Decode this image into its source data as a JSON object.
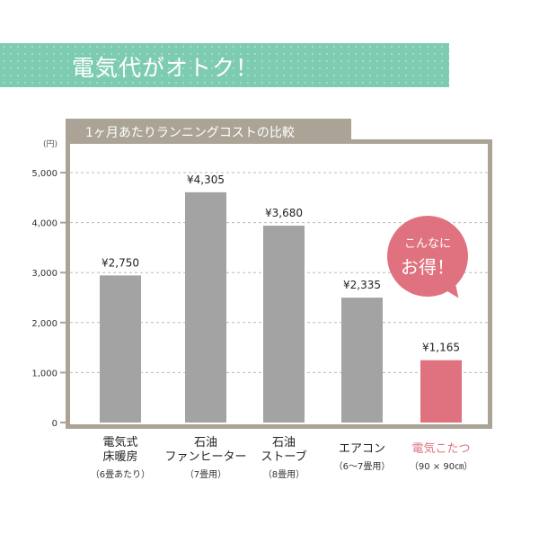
{
  "banner": {
    "title": "電気代がオトク！"
  },
  "callout": {
    "line1": "こんなに",
    "line2": "お得！"
  },
  "colors": {
    "banner": "#7dcbb0",
    "frame": "#aba496",
    "bar": "#a3a3a3",
    "highlight": "#e0727f"
  },
  "chart_data": {
    "type": "bar",
    "title": "1ヶ月あたりランニングコストの比較",
    "ylabel": "(円)",
    "ylim": [
      0,
      5000
    ],
    "yticks": [
      "0",
      "1,000",
      "2,000",
      "3,000",
      "4,000",
      "5,000"
    ],
    "grid": true,
    "categories": [
      {
        "name": "電気式\n床暖房",
        "note": "（6畳あたり）"
      },
      {
        "name": "石油\nファンヒーター",
        "note": "（7畳用）"
      },
      {
        "name": "石油\nストーブ",
        "note": "（8畳用）"
      },
      {
        "name": "エアコン",
        "note": "（6〜7畳用）"
      },
      {
        "name": "電気こたつ",
        "note": "（90 × 90㎝）"
      }
    ],
    "values": [
      2750,
      4305,
      3680,
      2335,
      1165
    ],
    "value_labels": [
      "¥2,750",
      "¥4,305",
      "¥3,680",
      "¥2,335",
      "¥1,165"
    ],
    "highlight_index": 4
  }
}
